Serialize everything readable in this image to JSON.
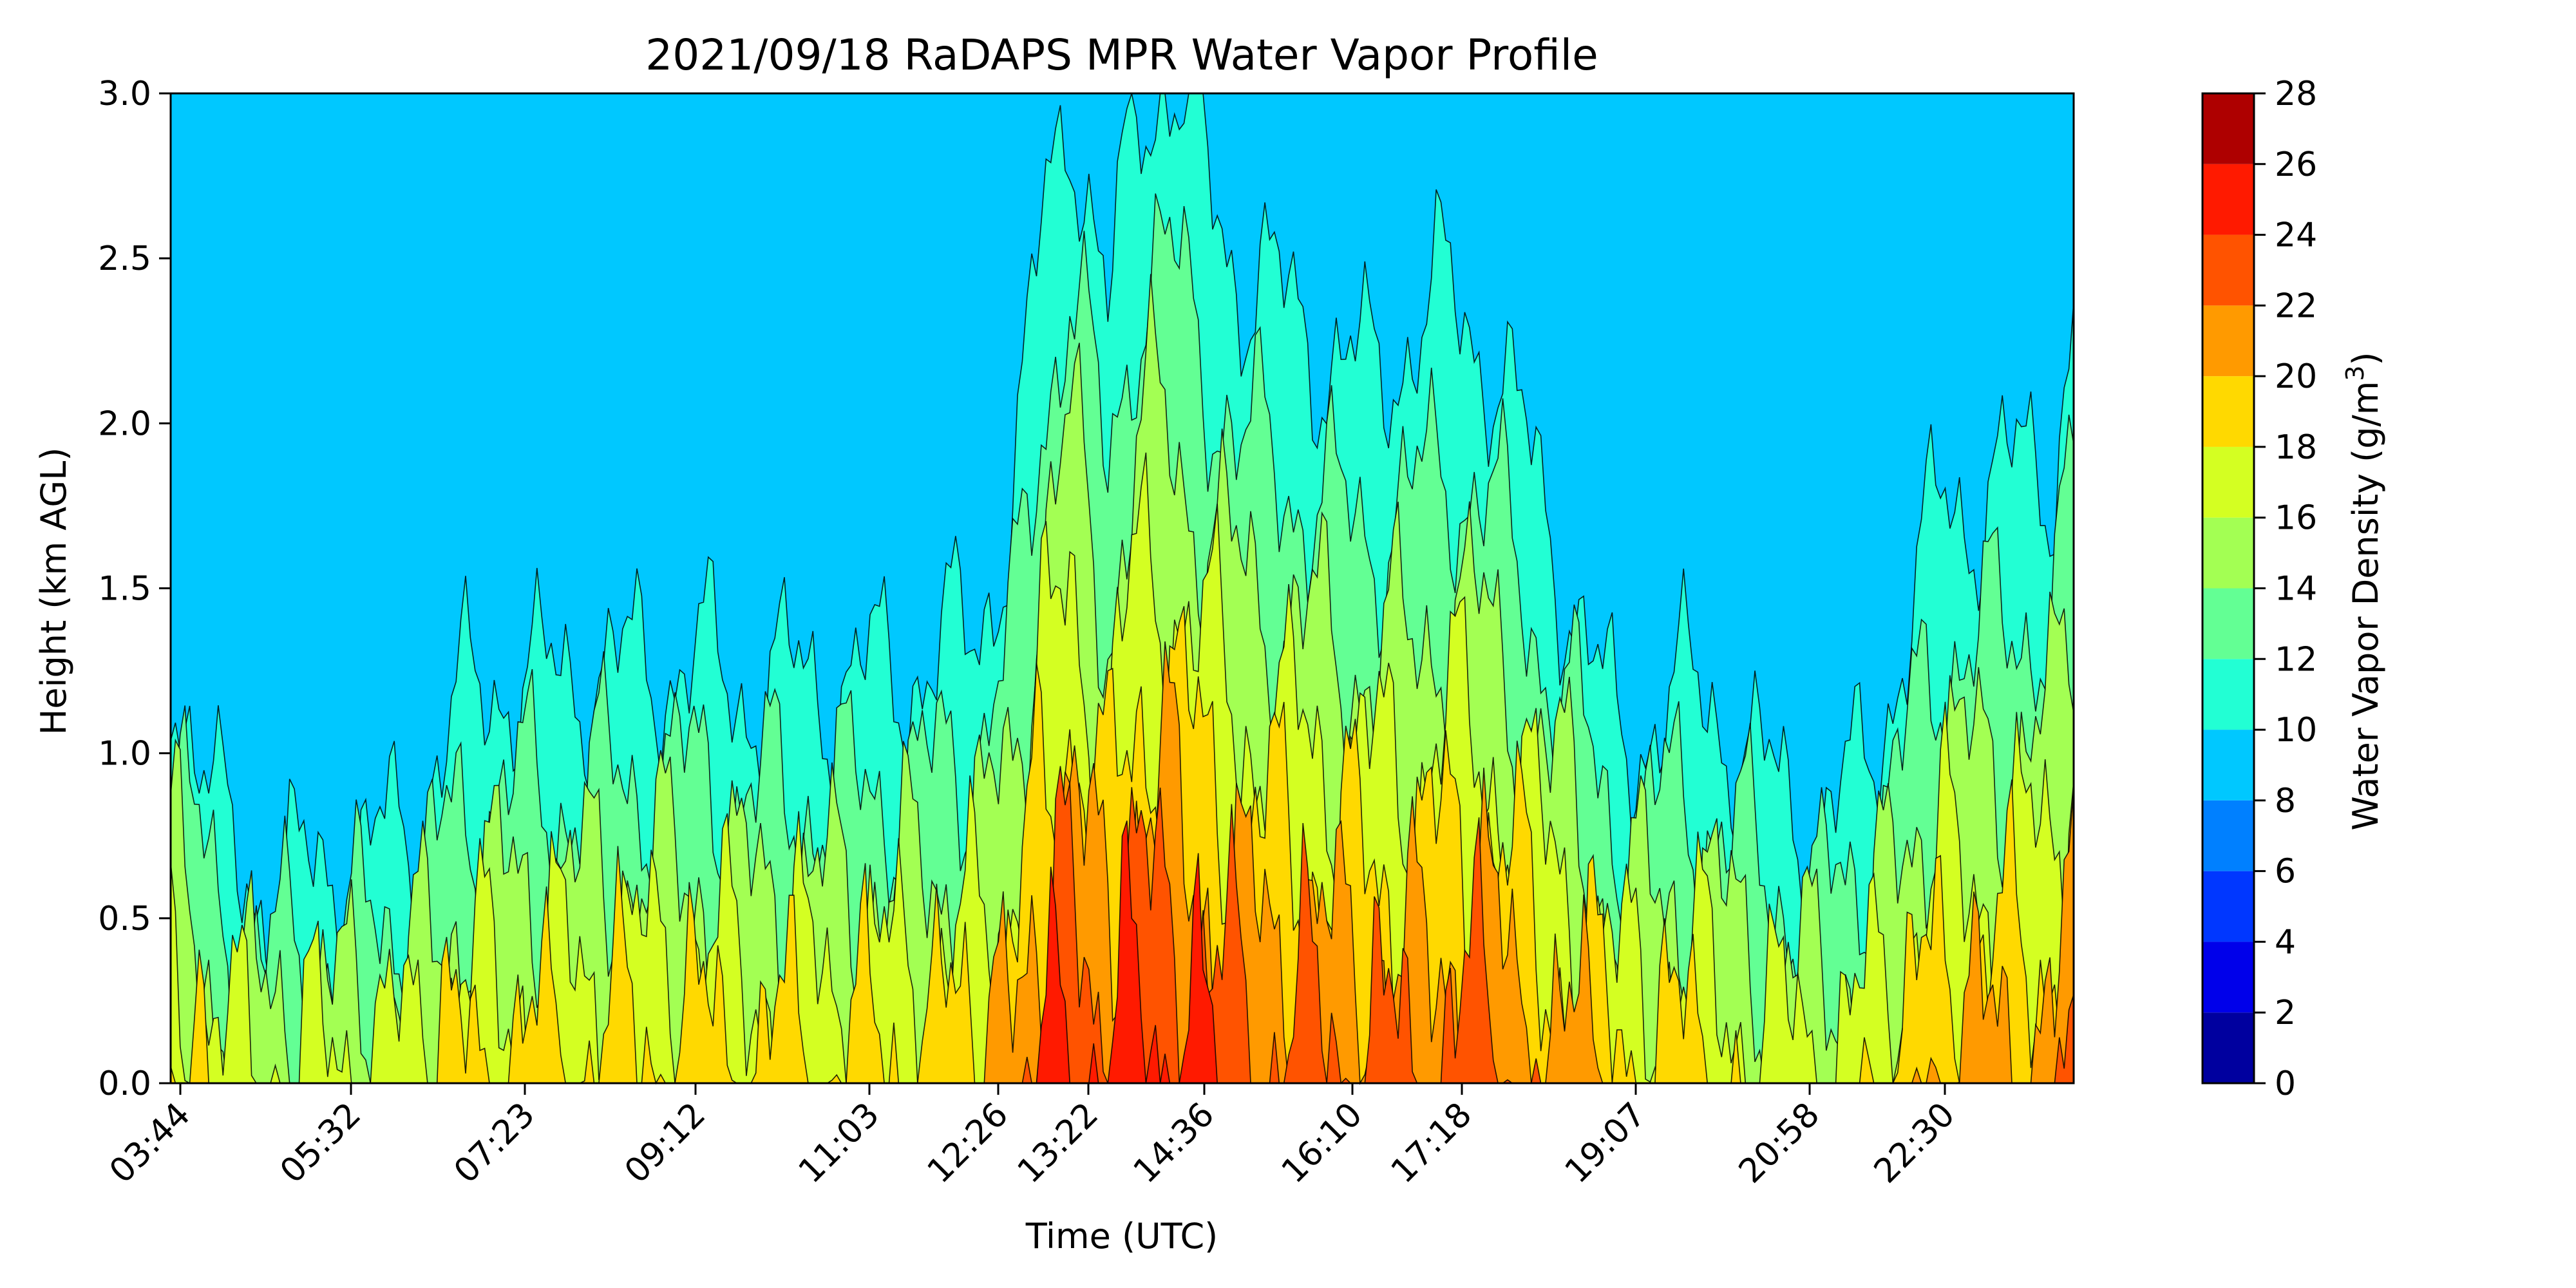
{
  "chart_data": {
    "type": "heatmap",
    "subtype": "filled-contour",
    "title": "2021/09/18 RaDAPS MPR Water Vapor Profile",
    "xlabel": "Time (UTC)",
    "ylabel": "Height (km AGL)",
    "colorbar_label": "Water Vapor Density (g/m",
    "colorbar_label_sup": "3",
    "colorbar_label_close": ")",
    "xticks": [
      "03:44",
      "05:32",
      "07:23",
      "09:12",
      "11:03",
      "12:26",
      "13:22",
      "14:36",
      "16:10",
      "17:18",
      "19:07",
      "20:58",
      "22:30"
    ],
    "yticks": [
      "0.0",
      "0.5",
      "1.0",
      "1.5",
      "2.0",
      "2.5",
      "3.0"
    ],
    "ylim": [
      0,
      3.0
    ],
    "levels": [
      0,
      2,
      4,
      6,
      8,
      10,
      12,
      14,
      16,
      18,
      20,
      22,
      24,
      26,
      28
    ],
    "level_labels": [
      "0",
      "2",
      "4",
      "6",
      "8",
      "10",
      "12",
      "14",
      "16",
      "18",
      "20",
      "22",
      "24",
      "26",
      "28"
    ],
    "colors": [
      "#00009f",
      "#0000ea",
      "#0037ff",
      "#0080ff",
      "#00c8ff",
      "#22ffd4",
      "#63ff94",
      "#a3ff53",
      "#d4ff22",
      "#ffd900",
      "#ff9a00",
      "#ff5300",
      "#ff1a00",
      "#ae0000"
    ],
    "time_hours": [
      3.7,
      4.2,
      4.7,
      5.2,
      5.7,
      6.2,
      6.7,
      7.2,
      7.7,
      8.2,
      8.7,
      9.2,
      9.7,
      10.2,
      10.7,
      11.2,
      11.7,
      12.2,
      12.6,
      12.9,
      13.2,
      13.6,
      13.9,
      14.2,
      14.6,
      15.0,
      15.5,
      16.0,
      16.4,
      16.8,
      17.2,
      17.6,
      18.0,
      18.5,
      19.0,
      19.5,
      20.0,
      20.5,
      21.0,
      21.5,
      22.0,
      22.4,
      22.8,
      23.2,
      23.6,
      23.8
    ],
    "surface_density": [
      19.5,
      17.5,
      16.8,
      17.0,
      17.2,
      17.5,
      18.5,
      19.0,
      19.0,
      19.2,
      19.5,
      19.5,
      19.3,
      19.2,
      19.0,
      19.0,
      19.3,
      19.8,
      21.0,
      24.5,
      25.5,
      24.0,
      26.0,
      25.8,
      24.5,
      23.5,
      23.5,
      23.0,
      23.5,
      22.0,
      23.8,
      23.5,
      22.5,
      21.0,
      19.5,
      19.5,
      18.5,
      17.8,
      17.5,
      18.0,
      19.5,
      21.0,
      21.0,
      21.0,
      21.5,
      24.0
    ],
    "scale_height_km": [
      1.6,
      1.1,
      0.9,
      0.95,
      1.0,
      1.1,
      1.45,
      1.55,
      1.5,
      1.55,
      1.5,
      1.55,
      1.45,
      1.5,
      1.5,
      1.55,
      1.55,
      1.6,
      1.9,
      2.3,
      2.6,
      2.1,
      2.5,
      2.6,
      2.5,
      2.3,
      2.2,
      2.1,
      2.0,
      2.3,
      2.2,
      2.1,
      1.9,
      1.6,
      1.2,
      1.4,
      1.5,
      1.3,
      1.1,
      1.2,
      1.6,
      1.9,
      1.9,
      2.0,
      2.0,
      2.1
    ]
  }
}
